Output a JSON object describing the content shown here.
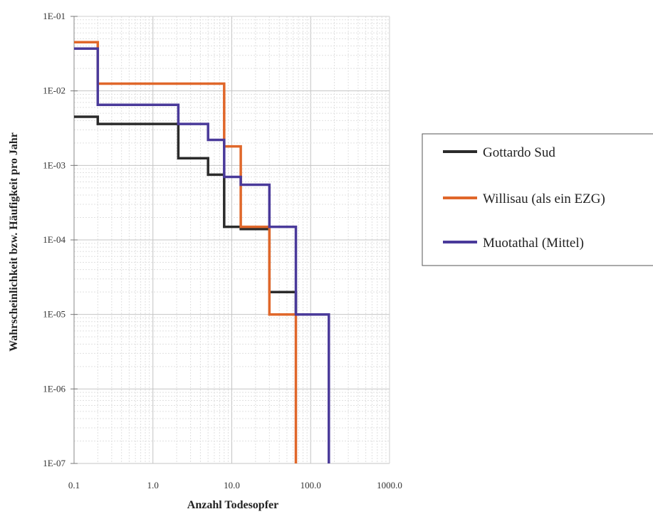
{
  "chart_data": {
    "type": "line",
    "step": true,
    "xscale": "log",
    "yscale": "log",
    "xlim": [
      0.1,
      1000
    ],
    "ylim": [
      1e-07,
      0.1
    ],
    "xlabel": "Anzahl Todesopfer",
    "ylabel": "Wahrscheinlichkeit bzw. Häufigkeit pro Jahr",
    "xticks": [
      {
        "value": 0.1,
        "label": "0.1"
      },
      {
        "value": 1,
        "label": "1.0"
      },
      {
        "value": 10,
        "label": "10.0"
      },
      {
        "value": 100,
        "label": "100.0"
      },
      {
        "value": 1000,
        "label": "1000.0"
      }
    ],
    "yticks": [
      {
        "value": 0.1,
        "label": "1E-01"
      },
      {
        "value": 0.01,
        "label": "1E-02"
      },
      {
        "value": 0.001,
        "label": "1E-03"
      },
      {
        "value": 0.0001,
        "label": "1E-04"
      },
      {
        "value": 1e-05,
        "label": "1E-05"
      },
      {
        "value": 1e-06,
        "label": "1E-06"
      },
      {
        "value": 1e-07,
        "label": "1E-07"
      }
    ],
    "grid": true,
    "legend_position": "right",
    "series": [
      {
        "name": "Gottardo Sud",
        "color": "#2b2b2b",
        "points": [
          [
            0.1,
            0.0045
          ],
          [
            0.2,
            0.0045
          ],
          [
            0.2,
            0.0036
          ],
          [
            2.1,
            0.0036
          ],
          [
            2.1,
            0.00125
          ],
          [
            5,
            0.00125
          ],
          [
            5,
            0.00075
          ],
          [
            8,
            0.00075
          ],
          [
            8,
            0.00015
          ],
          [
            13,
            0.00015
          ],
          [
            13,
            0.00014
          ],
          [
            30,
            0.00014
          ],
          [
            30,
            2e-05
          ],
          [
            65,
            2e-05
          ],
          [
            65,
            1e-05
          ]
        ]
      },
      {
        "name": "Willisau (als ein EZG)",
        "color": "#e0672a",
        "points": [
          [
            0.1,
            0.045
          ],
          [
            0.2,
            0.045
          ],
          [
            0.2,
            0.0125
          ],
          [
            8,
            0.0125
          ],
          [
            8,
            0.0018
          ],
          [
            13,
            0.0018
          ],
          [
            13,
            0.00015
          ],
          [
            30,
            0.00015
          ],
          [
            30,
            1e-05
          ],
          [
            65,
            1e-05
          ],
          [
            65,
            1e-07
          ]
        ]
      },
      {
        "name": "Muotathal (Mittel)",
        "color": "#4a3a9a",
        "points": [
          [
            0.1,
            0.037
          ],
          [
            0.2,
            0.037
          ],
          [
            0.2,
            0.0065
          ],
          [
            2.1,
            0.0065
          ],
          [
            2.1,
            0.0036
          ],
          [
            5,
            0.0036
          ],
          [
            5,
            0.0022
          ],
          [
            8,
            0.0022
          ],
          [
            8,
            0.0007
          ],
          [
            13,
            0.0007
          ],
          [
            13,
            0.00055
          ],
          [
            30,
            0.00055
          ],
          [
            30,
            0.00015
          ],
          [
            65,
            0.00015
          ],
          [
            65,
            1e-05
          ],
          [
            170,
            1e-05
          ],
          [
            170,
            1e-07
          ]
        ]
      }
    ]
  }
}
